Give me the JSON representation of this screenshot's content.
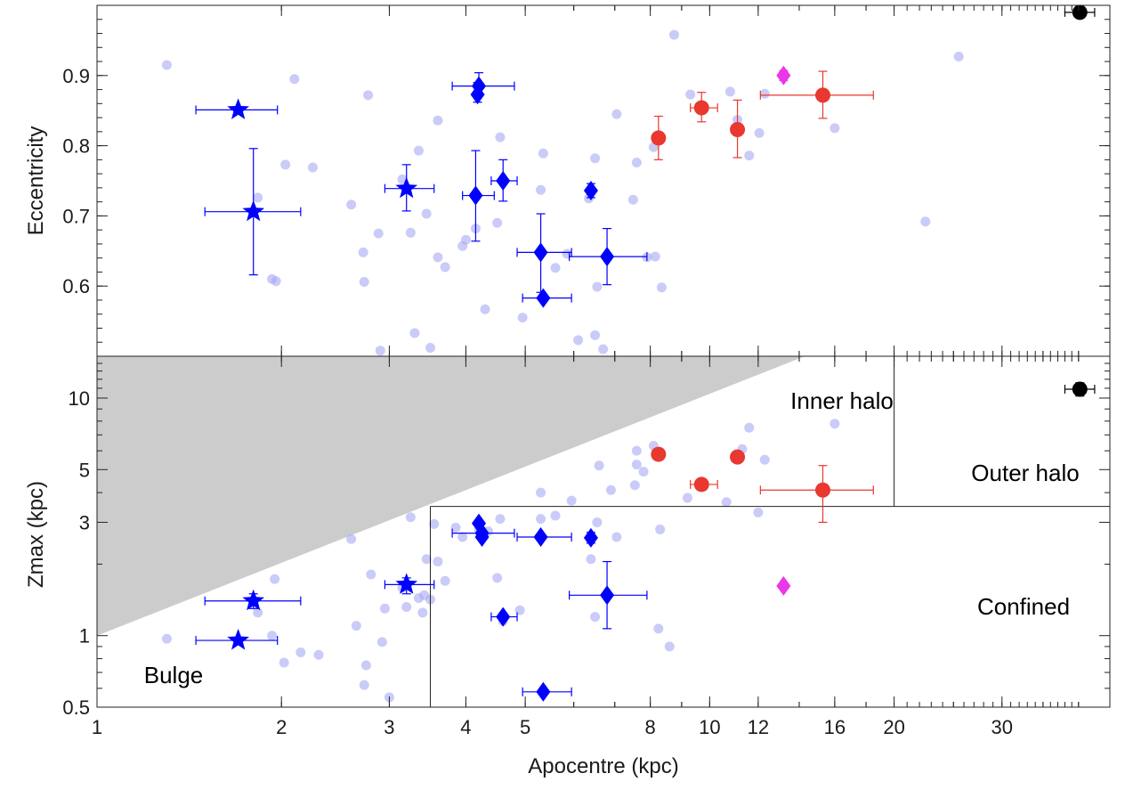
{
  "chart_data": [
    {
      "type": "scatter",
      "panel": "top",
      "xlabel": "",
      "ylabel": "Eccentricity",
      "x_scale": "log",
      "xlim": [
        1,
        45
      ],
      "ylim": [
        0.5,
        1.0
      ],
      "y_ticks": [
        0.6,
        0.7,
        0.8,
        0.9
      ],
      "y_tick_labels": [
        "0.6",
        "0.7",
        "0.8",
        "0.9"
      ],
      "background": [
        [
          1.3,
          0.915
        ],
        [
          2.1,
          0.895
        ],
        [
          2.03,
          0.773
        ],
        [
          2.25,
          0.769
        ],
        [
          1.93,
          0.61
        ],
        [
          1.96,
          0.607
        ],
        [
          1.83,
          0.726
        ],
        [
          2.6,
          0.716
        ],
        [
          2.72,
          0.648
        ],
        [
          2.77,
          0.872
        ],
        [
          2.73,
          0.606
        ],
        [
          2.88,
          0.675
        ],
        [
          3.15,
          0.752
        ],
        [
          3.25,
          0.676
        ],
        [
          3.35,
          0.793
        ],
        [
          3.45,
          0.703
        ],
        [
          3.6,
          0.836
        ],
        [
          3.6,
          0.641
        ],
        [
          3.7,
          0.627
        ],
        [
          3.95,
          0.657
        ],
        [
          4.0,
          0.666
        ],
        [
          4.15,
          0.682
        ],
        [
          4.3,
          0.567
        ],
        [
          4.5,
          0.69
        ],
        [
          4.55,
          0.812
        ],
        [
          4.95,
          0.555
        ],
        [
          5.3,
          0.737
        ],
        [
          5.35,
          0.789
        ],
        [
          5.6,
          0.626
        ],
        [
          5.85,
          0.646
        ],
        [
          6.1,
          0.523
        ],
        [
          6.35,
          0.725
        ],
        [
          6.5,
          0.782
        ],
        [
          6.55,
          0.599
        ],
        [
          6.7,
          0.51
        ],
        [
          7.05,
          0.845
        ],
        [
          7.5,
          0.723
        ],
        [
          7.6,
          0.776
        ],
        [
          8.1,
          0.798
        ],
        [
          8.15,
          0.642
        ],
        [
          8.35,
          0.598
        ],
        [
          8.75,
          0.958
        ],
        [
          9.3,
          0.873
        ],
        [
          10.8,
          0.877
        ],
        [
          11.1,
          0.837
        ],
        [
          12.05,
          0.818
        ],
        [
          12.3,
          0.874
        ],
        [
          16.0,
          0.825
        ],
        [
          25.5,
          0.927
        ],
        [
          22.5,
          0.692
        ],
        [
          6.5,
          0.53
        ],
        [
          2.9,
          0.508
        ],
        [
          3.5,
          0.512
        ],
        [
          3.3,
          0.533
        ],
        [
          7.9,
          0.641
        ],
        [
          11.6,
          0.786
        ]
      ],
      "series": [
        {
          "marker": "star",
          "color": "#0000ff",
          "points": [
            {
              "x": 1.7,
              "y": 0.851,
              "xerr": [
                1.45,
                1.97
              ]
            },
            {
              "x": 1.8,
              "y": 0.706,
              "xerr": [
                1.5,
                2.15
              ],
              "yerr": [
                0.616,
                0.796
              ]
            },
            {
              "x": 3.2,
              "y": 0.739,
              "xerr": [
                2.95,
                3.55
              ],
              "yerr": [
                0.707,
                0.773
              ]
            }
          ]
        },
        {
          "marker": "diamond",
          "color": "#0000ff",
          "points": [
            {
              "x": 4.2,
              "y": 0.885,
              "xerr": [
                3.8,
                4.8
              ],
              "yerr": [
                0.872,
                0.904
              ]
            },
            {
              "x": 4.18,
              "y": 0.873,
              "yerr": [
                0.862,
                0.89
              ]
            },
            {
              "x": 4.15,
              "y": 0.729,
              "xerr": [
                3.95,
                4.45
              ],
              "yerr": [
                0.664,
                0.793
              ]
            },
            {
              "x": 4.6,
              "y": 0.75,
              "xerr": [
                4.4,
                4.85
              ],
              "yerr": [
                0.721,
                0.78
              ]
            },
            {
              "x": 5.3,
              "y": 0.648,
              "xerr": [
                4.85,
                5.95
              ],
              "yerr": [
                0.591,
                0.703
              ]
            },
            {
              "x": 5.35,
              "y": 0.583,
              "xerr": [
                4.95,
                5.95
              ]
            },
            {
              "x": 6.4,
              "y": 0.736,
              "yerr": [
                0.726,
                0.746
              ]
            },
            {
              "x": 6.8,
              "y": 0.642,
              "xerr": [
                5.9,
                7.9
              ],
              "yerr": [
                0.602,
                0.682
              ]
            }
          ]
        },
        {
          "marker": "circle",
          "color": "#e8382f",
          "points": [
            {
              "x": 8.25,
              "y": 0.811,
              "yerr": [
                0.78,
                0.842
              ]
            },
            {
              "x": 9.7,
              "y": 0.854,
              "xerr": [
                9.3,
                10.3
              ],
              "yerr": [
                0.834,
                0.876
              ]
            },
            {
              "x": 11.1,
              "y": 0.823,
              "yerr": [
                0.783,
                0.865
              ]
            },
            {
              "x": 15.3,
              "y": 0.872,
              "xerr": [
                12.1,
                18.5
              ],
              "yerr": [
                0.839,
                0.906
              ]
            }
          ]
        },
        {
          "marker": "diamond",
          "color": "#e937e9",
          "points": [
            {
              "x": 13.2,
              "y": 0.9,
              "yerr": [
                0.893,
                0.907
              ]
            }
          ]
        },
        {
          "marker": "circle",
          "color": "#000000",
          "points": [
            {
              "x": 40.2,
              "y": 0.99,
              "xerr": [
                38.0,
                42.5
              ]
            }
          ]
        }
      ]
    },
    {
      "type": "scatter",
      "panel": "bottom",
      "xlabel": "Apocentre (kpc)",
      "ylabel": "Zmax (kpc)",
      "x_scale": "log",
      "y_scale": "log",
      "xlim": [
        1,
        45
      ],
      "ylim": [
        0.5,
        15
      ],
      "x_ticks": [
        1,
        2,
        3,
        4,
        5,
        8,
        10,
        12,
        16,
        20,
        30
      ],
      "x_tick_labels": [
        "1",
        "2",
        "3",
        "4",
        "5",
        "8",
        "10",
        "12",
        "16",
        "20",
        "30"
      ],
      "y_ticks": [
        0.5,
        1,
        3,
        5,
        10
      ],
      "y_tick_labels": [
        "0.5",
        "1",
        "3",
        "5",
        "10"
      ],
      "regions": [
        {
          "name": "Bulge",
          "label": "Bulge"
        },
        {
          "name": "Inner halo",
          "label": "Inner halo"
        },
        {
          "name": "Outer halo",
          "label": "Outer halo"
        },
        {
          "name": "Confined",
          "label": "Confined"
        }
      ],
      "shaded_excluded_region": {
        "from": [
          1,
          1.0
        ],
        "to": [
          14.3,
          15
        ],
        "color": "#cccccc"
      },
      "boundaries": {
        "confined_x": 3.5,
        "confined_z": 3.5,
        "outer_halo_x": 20
      },
      "background": [
        [
          1.3,
          0.97
        ],
        [
          1.93,
          1.0
        ],
        [
          1.83,
          1.25
        ],
        [
          1.95,
          1.73
        ],
        [
          2.02,
          0.77
        ],
        [
          2.15,
          0.85
        ],
        [
          2.3,
          0.83
        ],
        [
          2.6,
          2.55
        ],
        [
          2.65,
          1.1
        ],
        [
          2.75,
          0.75
        ],
        [
          2.73,
          0.62
        ],
        [
          2.8,
          1.81
        ],
        [
          2.92,
          0.94
        ],
        [
          2.95,
          1.3
        ],
        [
          3.0,
          0.55
        ],
        [
          3.15,
          1.59
        ],
        [
          3.2,
          1.32
        ],
        [
          3.25,
          3.15
        ],
        [
          3.35,
          1.44
        ],
        [
          3.4,
          1.25
        ],
        [
          3.42,
          1.48
        ],
        [
          3.45,
          2.1
        ],
        [
          3.5,
          1.42
        ],
        [
          3.55,
          2.95
        ],
        [
          3.6,
          2.05
        ],
        [
          3.7,
          1.7
        ],
        [
          3.85,
          2.85
        ],
        [
          3.95,
          2.6
        ],
        [
          4.2,
          2.8
        ],
        [
          4.35,
          2.75
        ],
        [
          4.5,
          1.75
        ],
        [
          4.55,
          3.1
        ],
        [
          4.6,
          1.15
        ],
        [
          4.9,
          1.28
        ],
        [
          5.3,
          3.1
        ],
        [
          5.3,
          4.0
        ],
        [
          5.6,
          3.2
        ],
        [
          5.95,
          3.7
        ],
        [
          6.4,
          2.1
        ],
        [
          6.5,
          1.2
        ],
        [
          6.55,
          3.0
        ],
        [
          6.6,
          5.2
        ],
        [
          6.9,
          4.1
        ],
        [
          7.05,
          2.6
        ],
        [
          7.55,
          4.3
        ],
        [
          7.6,
          5.25
        ],
        [
          7.6,
          6.0
        ],
        [
          7.8,
          4.9
        ],
        [
          8.1,
          6.3
        ],
        [
          8.25,
          1.07
        ],
        [
          8.3,
          2.8
        ],
        [
          8.6,
          0.9
        ],
        [
          9.2,
          3.8
        ],
        [
          10.65,
          3.65
        ],
        [
          11.3,
          6.1
        ],
        [
          11.6,
          7.5
        ],
        [
          12.0,
          3.3
        ],
        [
          12.3,
          5.5
        ],
        [
          16.0,
          7.8
        ]
      ],
      "series": [
        {
          "marker": "star",
          "color": "#0000ff",
          "points": [
            {
              "x": 1.7,
              "y": 0.955,
              "xerr": [
                1.45,
                1.97
              ]
            },
            {
              "x": 1.8,
              "y": 1.4,
              "xerr": [
                1.5,
                2.15
              ],
              "yerr": [
                1.3,
                1.5
              ]
            },
            {
              "x": 3.2,
              "y": 1.64,
              "xerr": [
                2.95,
                3.55
              ],
              "yerr": [
                1.5,
                1.75
              ]
            }
          ]
        },
        {
          "marker": "diamond",
          "color": "#0000ff",
          "points": [
            {
              "x": 4.2,
              "y": 2.97
            },
            {
              "x": 4.25,
              "y": 2.7,
              "xerr": [
                3.8,
                4.8
              ]
            },
            {
              "x": 4.25,
              "y": 2.6
            },
            {
              "x": 4.6,
              "y": 1.2,
              "xerr": [
                4.4,
                4.85
              ]
            },
            {
              "x": 5.3,
              "y": 2.6,
              "xerr": [
                4.85,
                5.95
              ]
            },
            {
              "x": 5.35,
              "y": 0.58,
              "xerr": [
                4.95,
                5.95
              ]
            },
            {
              "x": 6.4,
              "y": 2.58,
              "yerr": [
                2.45,
                2.72
              ]
            },
            {
              "x": 6.8,
              "y": 1.48,
              "xerr": [
                5.9,
                7.9
              ],
              "yerr": [
                1.07,
                2.05
              ]
            }
          ]
        },
        {
          "marker": "circle",
          "color": "#e8382f",
          "points": [
            {
              "x": 8.25,
              "y": 5.8
            },
            {
              "x": 9.7,
              "y": 4.33,
              "xerr": [
                9.3,
                10.3
              ]
            },
            {
              "x": 11.1,
              "y": 5.65
            },
            {
              "x": 15.3,
              "y": 4.1,
              "xerr": [
                12.1,
                18.5
              ],
              "yerr": [
                3.0,
                5.2
              ]
            }
          ]
        },
        {
          "marker": "diamond",
          "color": "#e937e9",
          "points": [
            {
              "x": 13.2,
              "y": 1.62
            }
          ]
        },
        {
          "marker": "circle",
          "color": "#000000",
          "points": [
            {
              "x": 40.2,
              "y": 10.9,
              "xerr": [
                38.0,
                42.5
              ],
              "yerr": [
                10.2,
                11.6
              ]
            }
          ]
        }
      ]
    }
  ]
}
